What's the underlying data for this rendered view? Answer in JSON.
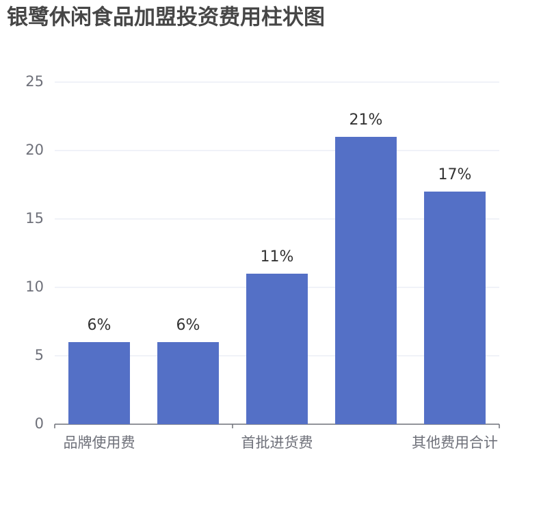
{
  "chart_data": {
    "type": "bar",
    "title": "银鹭休闲食品加盟投资费用柱状图",
    "categories": [
      "品牌使用费",
      null,
      "首批进货费",
      null,
      "其他费用合计"
    ],
    "values": [
      6,
      6,
      11,
      21,
      17
    ],
    "value_labels": [
      "6%",
      "6%",
      "11%",
      "21%",
      "17%"
    ],
    "color": "#5470c6",
    "ylim": [
      0,
      25
    ],
    "yticks": [
      0,
      5,
      10,
      15,
      20,
      25
    ],
    "grid": true
  }
}
